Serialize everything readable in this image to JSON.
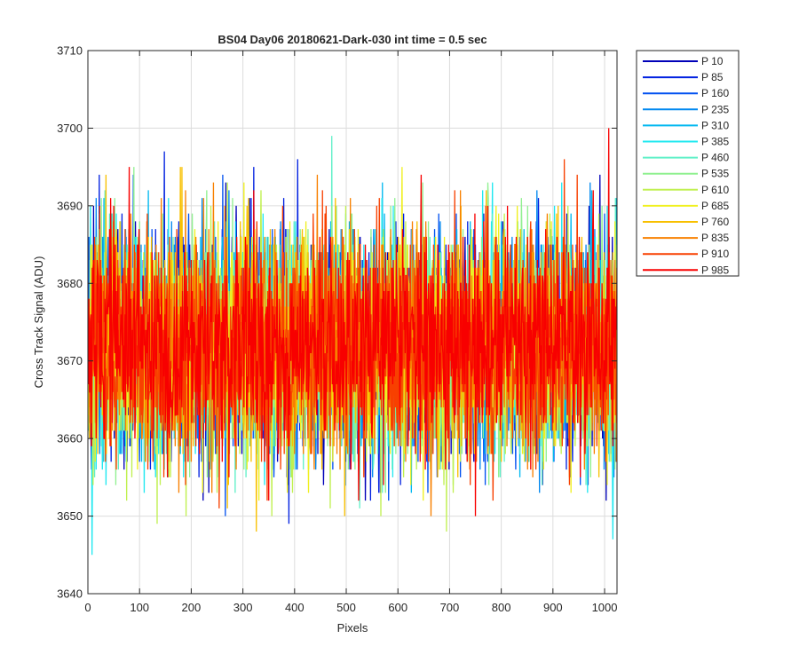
{
  "chart_data": {
    "type": "line",
    "title": "BS04 Day06 20180621-Dark-030 int time = 0.5 sec",
    "xlabel": "Pixels",
    "ylabel": "Cross Track Signal (ADU)",
    "xlim": [
      0,
      1024
    ],
    "ylim": [
      3640,
      3710
    ],
    "xticks": [
      0,
      100,
      200,
      300,
      400,
      500,
      600,
      700,
      800,
      900,
      1000
    ],
    "yticks": [
      3640,
      3650,
      3660,
      3670,
      3680,
      3690,
      3700,
      3710
    ],
    "xtick_labels": [
      "0",
      "100",
      "200",
      "300",
      "400",
      "500",
      "600",
      "700",
      "800",
      "900",
      "1000"
    ],
    "ytick_labels": [
      "3640",
      "3650",
      "3660",
      "3670",
      "3680",
      "3690",
      "3700",
      "3710"
    ],
    "grid": true,
    "legend_position": "outside-top-right",
    "noise_center": 3672,
    "noise_sigma": 7,
    "points_per_series": 1024,
    "series": [
      {
        "name": "P 10",
        "color": "#0000b8"
      },
      {
        "name": "P 85",
        "color": "#0020e0"
      },
      {
        "name": "P 160",
        "color": "#0050f0"
      },
      {
        "name": "P 235",
        "color": "#0088f0"
      },
      {
        "name": "P 310",
        "color": "#00b8f0"
      },
      {
        "name": "P 385",
        "color": "#20e8f0"
      },
      {
        "name": "P 460",
        "color": "#60f0c8"
      },
      {
        "name": "P 535",
        "color": "#90f090"
      },
      {
        "name": "P 610",
        "color": "#c0f050"
      },
      {
        "name": "P 685",
        "color": "#f0f020"
      },
      {
        "name": "P 760",
        "color": "#f8c000"
      },
      {
        "name": "P 835",
        "color": "#f88000"
      },
      {
        "name": "P 910",
        "color": "#f84000"
      },
      {
        "name": "P 985",
        "color": "#f80000"
      }
    ]
  }
}
